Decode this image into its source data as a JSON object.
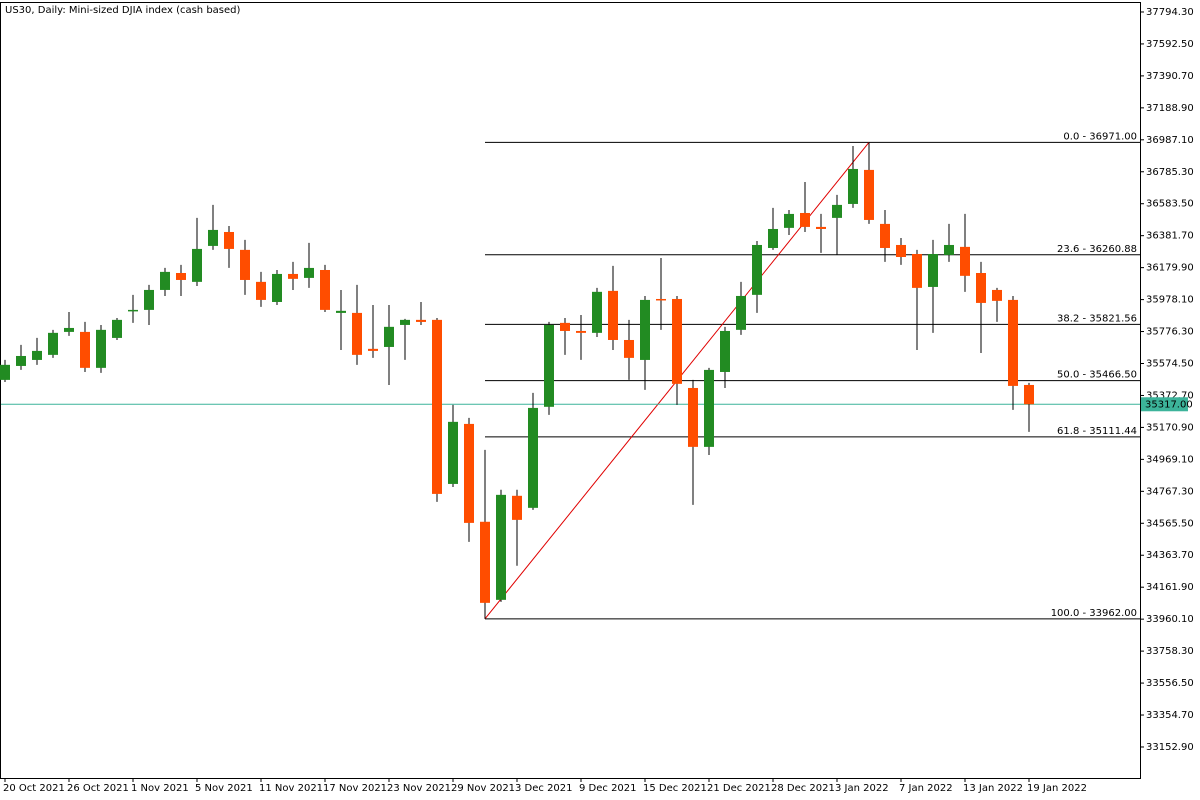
{
  "chart_data": {
    "type": "candlestick",
    "title": "US30, Daily:  Mini-sized DJIA index (cash based)",
    "categories": [
      "20 Oct 2021",
      null,
      null,
      null,
      "26 Oct 2021",
      null,
      null,
      null,
      "1 Nov 2021",
      null,
      null,
      null,
      "5 Nov 2021",
      null,
      null,
      null,
      "11 Nov 2021",
      null,
      null,
      null,
      "17 Nov 2021",
      null,
      null,
      null,
      "23 Nov 2021",
      null,
      null,
      null,
      "29 Nov 2021",
      null,
      null,
      null,
      "3 Dec 2021",
      null,
      null,
      null,
      "9 Dec 2021",
      null,
      null,
      null,
      "15 Dec 2021",
      null,
      null,
      null,
      "21 Dec 2021",
      null,
      null,
      null,
      "28 Dec 2021",
      null,
      null,
      null,
      "3 Jan 2022",
      null,
      null,
      null,
      "7 Jan 2022",
      null,
      null,
      null,
      "13 Jan 2022",
      null,
      null,
      null,
      "19 Jan 2022"
    ],
    "open": [
      35471,
      35559,
      35597,
      35629,
      35774,
      35774,
      35547,
      35736,
      35907,
      35913,
      36039,
      36146,
      36090,
      36317,
      36405,
      36292,
      36090,
      35963,
      36140,
      36115,
      36165,
      35894,
      35894,
      35667,
      35679,
      35818,
      35850,
      35850,
      34814,
      35193,
      34575,
      34082,
      34739,
      34663,
      35301,
      35831,
      35780,
      35768,
      36033,
      35723,
      35597,
      35982,
      35982,
      35420,
      35048,
      35521,
      35787,
      36008,
      36304,
      36431,
      36525,
      36437,
      36494,
      36582,
      36797,
      36456,
      36323,
      36266,
      36058,
      36260,
      36311,
      36146,
      36039,
      35976,
      35439
    ],
    "high": [
      35597,
      35692,
      35736,
      35787,
      35900,
      35837,
      35818,
      35862,
      36008,
      36071,
      36178,
      36197,
      36494,
      36576,
      36443,
      36355,
      36153,
      36165,
      36216,
      36336,
      36197,
      36039,
      36071,
      35944,
      35944,
      35856,
      35963,
      35862,
      35313,
      35231,
      35029,
      34777,
      34777,
      35389,
      35837,
      35862,
      35881,
      36052,
      36191,
      35850,
      36001,
      36241,
      36001,
      35471,
      35547,
      35806,
      36090,
      36348,
      36557,
      36544,
      36721,
      36519,
      36639,
      36948,
      36971,
      36544,
      36367,
      36292,
      36355,
      36456,
      36519,
      36216,
      36052,
      36001,
      35452
    ],
    "low": [
      35458,
      35534,
      35566,
      35610,
      35749,
      35521,
      35515,
      35723,
      35831,
      35818,
      36001,
      36001,
      36064,
      36292,
      36178,
      36008,
      35932,
      35944,
      36039,
      36052,
      35900,
      35660,
      35566,
      35610,
      35439,
      35597,
      35818,
      34701,
      34795,
      34448,
      33962,
      34069,
      34297,
      34650,
      35250,
      35629,
      35597,
      35742,
      35660,
      35471,
      35408,
      35787,
      35313,
      34682,
      34997,
      35420,
      35755,
      35894,
      36292,
      36386,
      36405,
      36273,
      36260,
      36557,
      36456,
      36216,
      36197,
      35660,
      35768,
      36216,
      36027,
      35641,
      35837,
      35282,
      35143
    ],
    "close": [
      35566,
      35622,
      35654,
      35768,
      35799,
      35547,
      35787,
      35850,
      35913,
      36039,
      36153,
      36102,
      36298,
      36418,
      36298,
      36102,
      35976,
      36140,
      36109,
      36178,
      35913,
      35907,
      35629,
      35654,
      35806,
      35850,
      35837,
      34751,
      35206,
      34568,
      34063,
      34745,
      34587,
      35294,
      35818,
      35780,
      35768,
      36027,
      35723,
      35610,
      35976,
      35976,
      35446,
      35048,
      35534,
      35780,
      36001,
      36323,
      36424,
      36519,
      36437,
      36424,
      36576,
      36803,
      36481,
      36304,
      36247,
      36052,
      36266,
      36323,
      36128,
      35957,
      35970,
      35433,
      35317
    ],
    "up_color": "#228b22",
    "down_color": "#ff4d00",
    "ylim": [
      32957,
      37851
    ],
    "yticks": [
      {
        "value": 37794.3,
        "label": "37794.30"
      },
      {
        "value": 37592.5,
        "label": "37592.50"
      },
      {
        "value": 37390.7,
        "label": "37390.70"
      },
      {
        "value": 37188.9,
        "label": "37188.90"
      },
      {
        "value": 36987.1,
        "label": "36987.10"
      },
      {
        "value": 36785.3,
        "label": "36785.30"
      },
      {
        "value": 36583.5,
        "label": "36583.50"
      },
      {
        "value": 36381.7,
        "label": "36381.70"
      },
      {
        "value": 36179.9,
        "label": "36179.90"
      },
      {
        "value": 35978.1,
        "label": "35978.10"
      },
      {
        "value": 35776.3,
        "label": "35776.30"
      },
      {
        "value": 35574.5,
        "label": "35574.50"
      },
      {
        "value": 35372.7,
        "label": "35372.70"
      },
      {
        "value": 35170.9,
        "label": "35170.90"
      },
      {
        "value": 34969.1,
        "label": "34969.10"
      },
      {
        "value": 34767.3,
        "label": "34767.30"
      },
      {
        "value": 34565.5,
        "label": "34565.50"
      },
      {
        "value": 34363.7,
        "label": "34363.70"
      },
      {
        "value": 34161.9,
        "label": "34161.90"
      },
      {
        "value": 33960.1,
        "label": "33960.10"
      },
      {
        "value": 33758.3,
        "label": "33758.30"
      },
      {
        "value": 33556.5,
        "label": "33556.50"
      },
      {
        "value": 33354.7,
        "label": "33354.70"
      },
      {
        "value": 33152.9,
        "label": "33152.90"
      }
    ],
    "last_price": {
      "value": 35317,
      "label": "35317.00",
      "color": "#3cb39a"
    },
    "fibonacci": {
      "color": "#000000",
      "trend_color": "#e00000",
      "levels": [
        {
          "value": 36971,
          "label": "0.0 - 36971.00"
        },
        {
          "value": 36260.88,
          "label": "23.6 - 36260.88"
        },
        {
          "value": 35821.56,
          "label": "38.2 - 35821.56"
        },
        {
          "value": 35466.5,
          "label": "50.0 - 35466.50"
        },
        {
          "value": 35111.44,
          "label": "61.8 - 35111.44"
        },
        {
          "value": 33962,
          "label": "100.0 - 33962.00"
        }
      ]
    }
  }
}
